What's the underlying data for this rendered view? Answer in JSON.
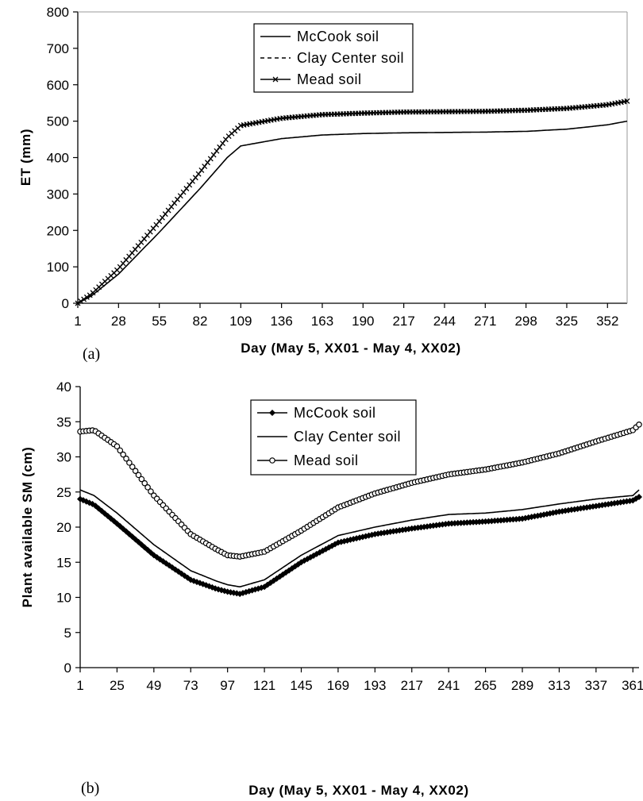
{
  "chart_data": [
    {
      "type": "line",
      "panel_label": "(a)",
      "xlabel": "Day (May 5, XX01 - May 4, XX02)",
      "ylabel": "ET (mm)",
      "xlim": [
        1,
        365
      ],
      "ylim": [
        0,
        800
      ],
      "x_ticks": [
        1,
        28,
        55,
        82,
        109,
        136,
        163,
        190,
        217,
        244,
        271,
        298,
        325,
        352
      ],
      "y_ticks": [
        0,
        100,
        200,
        300,
        400,
        500,
        600,
        700,
        800
      ],
      "grid": false,
      "legend_position": "top-center",
      "x": [
        1,
        10,
        28,
        55,
        82,
        100,
        109,
        136,
        163,
        190,
        217,
        244,
        271,
        298,
        325,
        352,
        365
      ],
      "series": [
        {
          "name": "McCook soil",
          "style": "solid",
          "color": "#000000",
          "values": [
            0,
            20,
            80,
            195,
            315,
            400,
            432,
            452,
            462,
            466,
            468,
            469,
            470,
            472,
            478,
            490,
            500
          ]
        },
        {
          "name": "Clay Center soil",
          "style": "dashed",
          "color": "#000000",
          "values": [
            0,
            25,
            95,
            225,
            360,
            455,
            488,
            508,
            518,
            522,
            525,
            526,
            527,
            530,
            535,
            545,
            555
          ]
        },
        {
          "name": "Mead soil",
          "style": "x-marker",
          "color": "#000000",
          "values": [
            0,
            25,
            95,
            225,
            360,
            455,
            488,
            508,
            518,
            522,
            525,
            526,
            527,
            530,
            535,
            545,
            555
          ]
        }
      ]
    },
    {
      "type": "line",
      "panel_label": "(b)",
      "xlabel": "Day (May 5, XX01 - May 4, XX02)",
      "ylabel": "Plant available SM (cm)",
      "xlim": [
        1,
        365
      ],
      "ylim": [
        0,
        40
      ],
      "x_ticks": [
        1,
        25,
        49,
        73,
        97,
        121,
        145,
        169,
        193,
        217,
        241,
        265,
        289,
        313,
        337,
        361
      ],
      "y_ticks": [
        0,
        5,
        10,
        15,
        20,
        25,
        30,
        35,
        40
      ],
      "grid": false,
      "legend_position": "top-center",
      "x": [
        1,
        10,
        25,
        49,
        73,
        90,
        97,
        105,
        121,
        145,
        169,
        193,
        217,
        241,
        265,
        289,
        313,
        337,
        361,
        365
      ],
      "series": [
        {
          "name": "McCook soil",
          "style": "diamond-marker",
          "color": "#000000",
          "values": [
            24.0,
            23.2,
            20.5,
            16.0,
            12.5,
            11.2,
            10.8,
            10.5,
            11.5,
            15.0,
            17.8,
            19.0,
            19.8,
            20.5,
            20.8,
            21.2,
            22.2,
            23.0,
            23.8,
            24.3
          ]
        },
        {
          "name": "Clay Center soil",
          "style": "solid",
          "color": "#000000",
          "values": [
            25.3,
            24.5,
            22.0,
            17.5,
            13.8,
            12.3,
            11.8,
            11.5,
            12.5,
            16.0,
            18.8,
            20.0,
            21.0,
            21.8,
            22.0,
            22.5,
            23.3,
            24.0,
            24.5,
            25.3
          ]
        },
        {
          "name": "Mead soil",
          "style": "circle-marker",
          "color": "#000000",
          "values": [
            33.6,
            33.8,
            31.5,
            24.5,
            19.0,
            16.8,
            16.0,
            15.8,
            16.5,
            19.5,
            22.8,
            24.8,
            26.3,
            27.5,
            28.2,
            29.2,
            30.5,
            32.2,
            33.8,
            34.6
          ]
        }
      ]
    }
  ]
}
